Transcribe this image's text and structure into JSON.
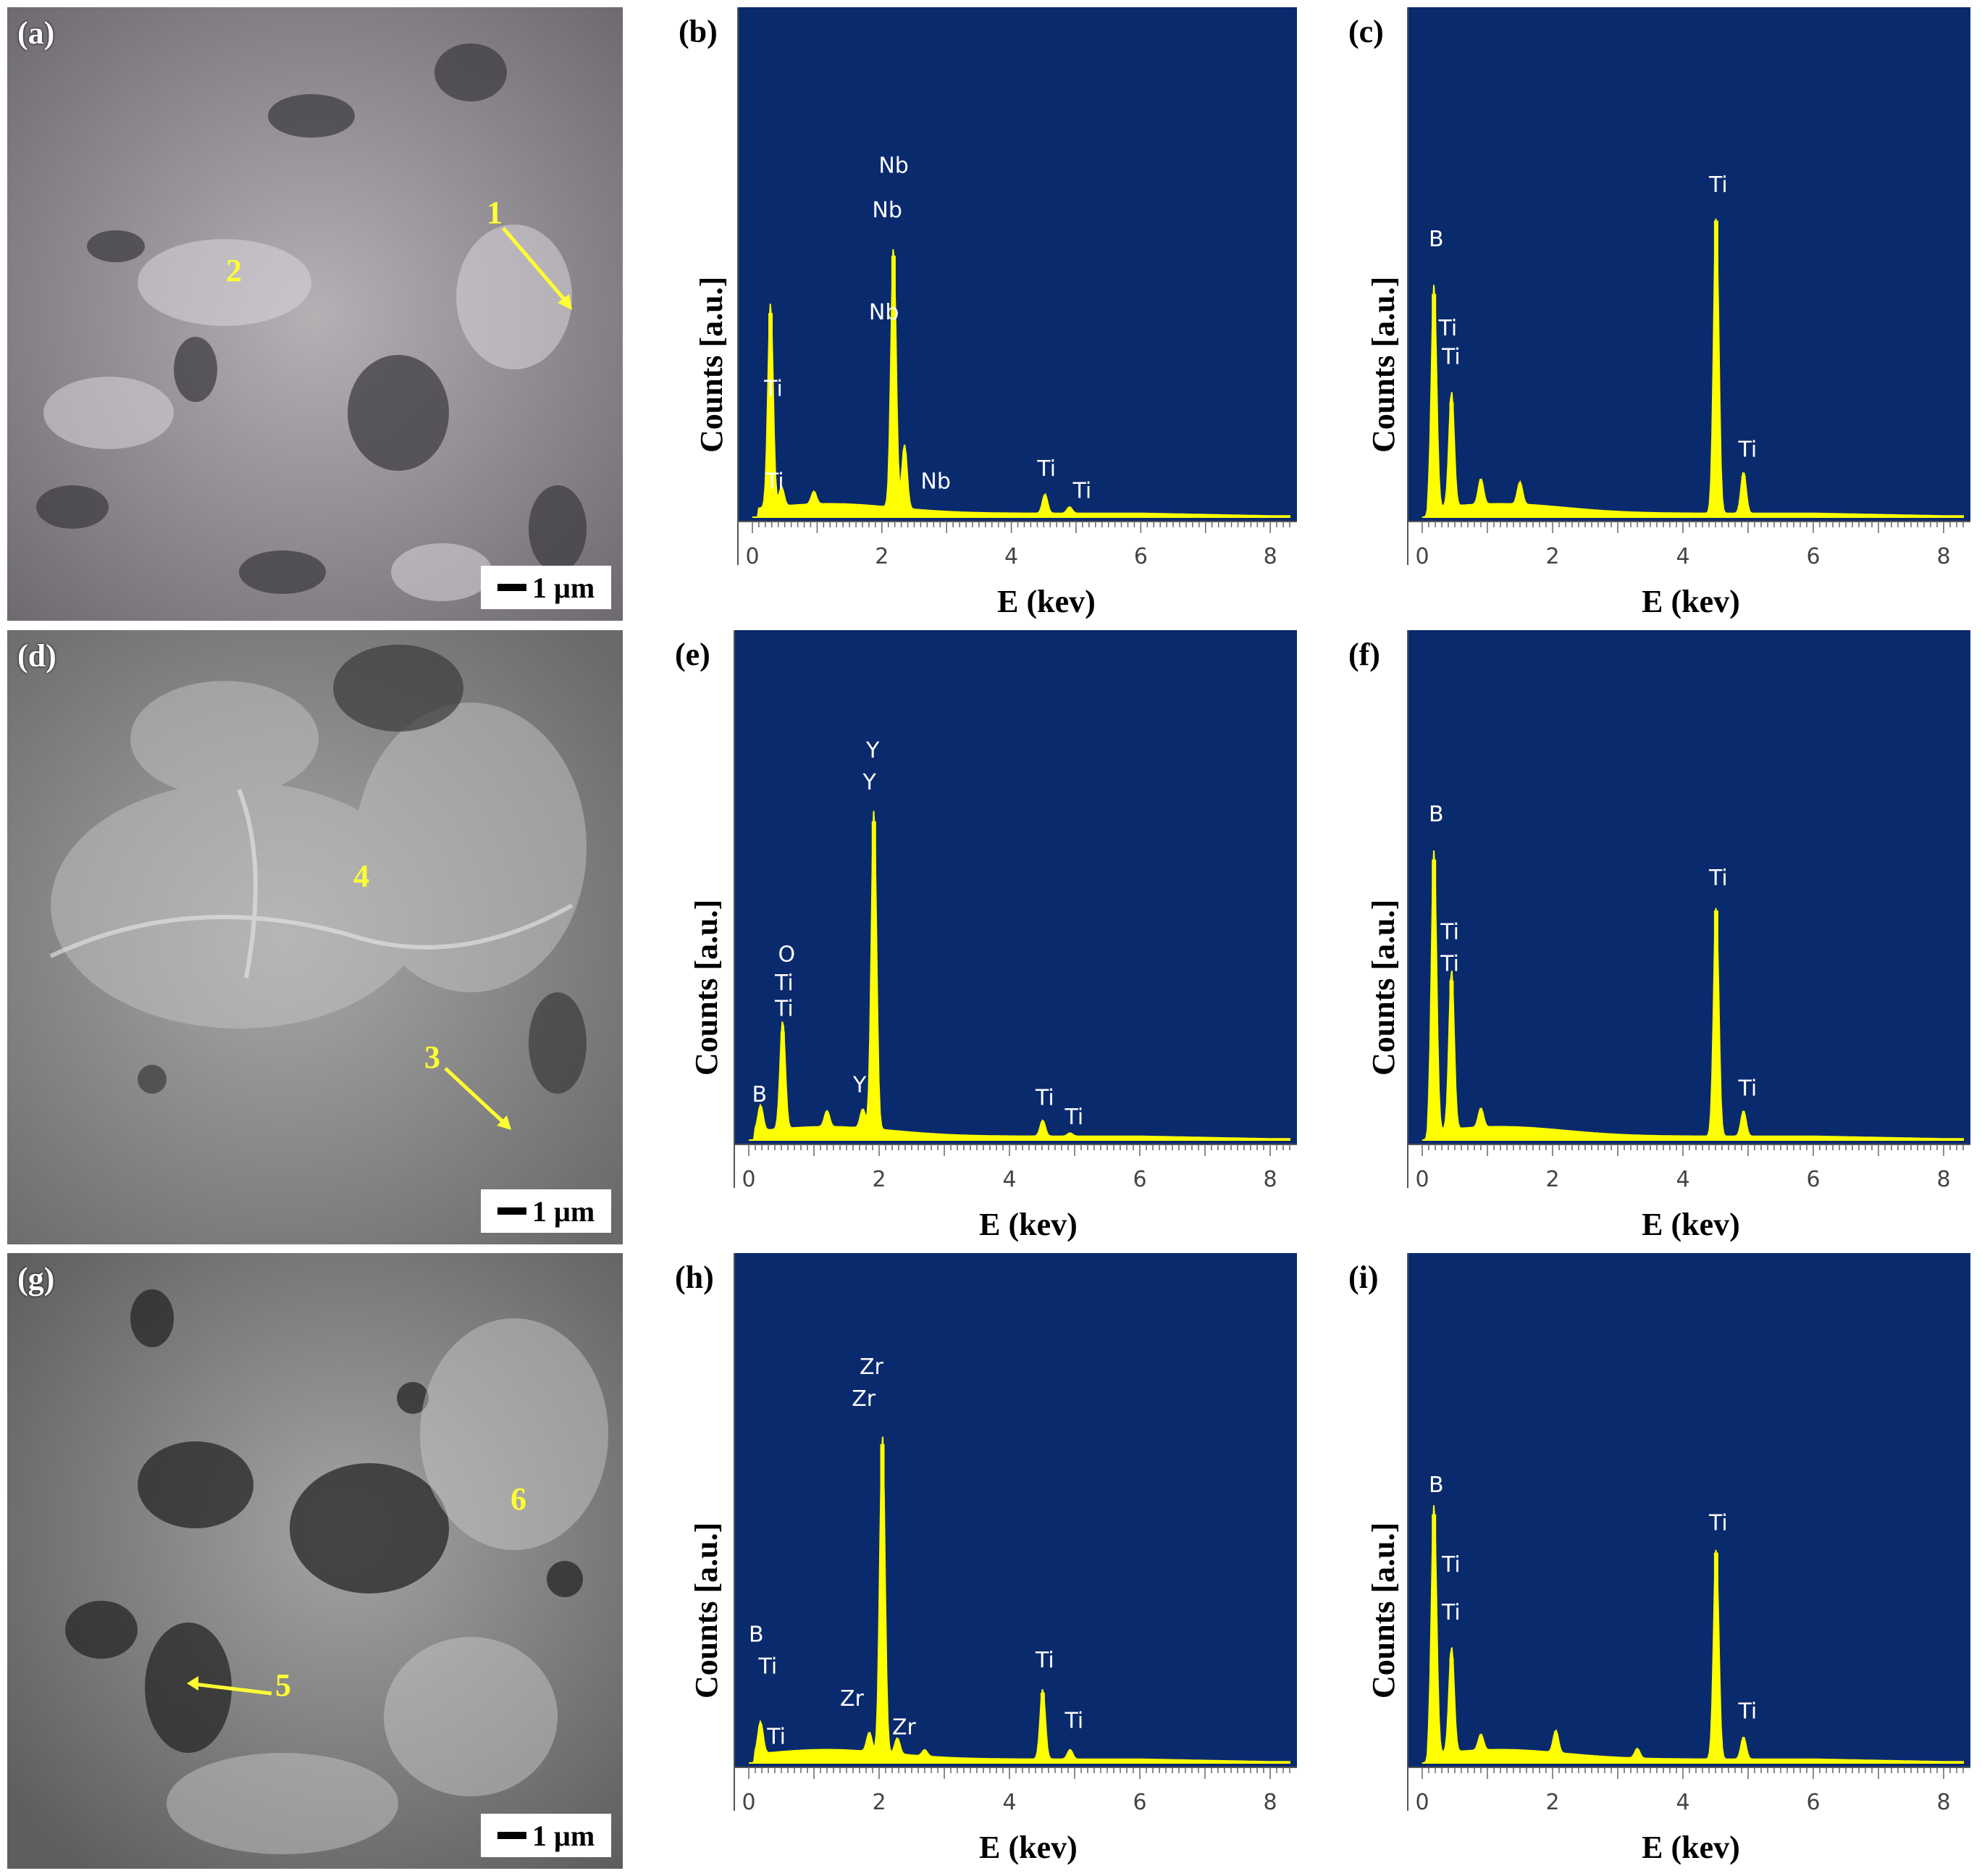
{
  "sem_panels": [
    {
      "id": "a",
      "letter": "(a)",
      "scale": "1 µm",
      "markers": [
        {
          "label": "1"
        },
        {
          "label": "2"
        }
      ],
      "tone": "#8e8a8e"
    },
    {
      "id": "d",
      "letter": "(d)",
      "scale": "1 µm",
      "markers": [
        {
          "label": "3"
        },
        {
          "label": "4"
        }
      ],
      "tone": "#8c8c8c"
    },
    {
      "id": "g",
      "letter": "(g)",
      "scale": "1 µm",
      "markers": [
        {
          "label": "5"
        },
        {
          "label": "6"
        }
      ],
      "tone": "#7f7f7f"
    }
  ],
  "colors": {
    "plot_bg": "#0a2a6e",
    "spectrum": "#ffff00",
    "peak_label": "#ffffff",
    "marker": "#ffff33"
  },
  "axis_text": {
    "ylabel": "Counts [a.u.]",
    "xlabel": "E (kev)"
  },
  "chart_data": [
    {
      "id": "b",
      "letter": "(b)",
      "type": "area",
      "xlim": [
        0,
        8.3
      ],
      "xticks": [
        0,
        2,
        4,
        6,
        8
      ],
      "peaks": [
        {
          "x": 0.28,
          "h": 0.64
        },
        {
          "x": 0.45,
          "h": 0.06
        },
        {
          "x": 0.95,
          "h": 0.04
        },
        {
          "x": 2.18,
          "h": 0.82
        },
        {
          "x": 2.35,
          "h": 0.2
        },
        {
          "x": 4.52,
          "h": 0.06
        },
        {
          "x": 4.9,
          "h": 0.02
        }
      ],
      "labels": [
        {
          "text": "Ti",
          "x": 0.18,
          "y": 0.38
        },
        {
          "text": "Ti",
          "x": 0.2,
          "y": 0.09
        },
        {
          "text": "Nb",
          "x": 1.95,
          "y": 1.08
        },
        {
          "text": "Nb",
          "x": 1.85,
          "y": 0.94
        },
        {
          "text": "Nb",
          "x": 1.8,
          "y": 0.62
        },
        {
          "text": "Nb",
          "x": 2.6,
          "y": 0.09
        },
        {
          "text": "Ti",
          "x": 4.4,
          "y": 0.13
        },
        {
          "text": "Ti",
          "x": 4.95,
          "y": 0.06
        }
      ]
    },
    {
      "id": "c",
      "letter": "(c)",
      "type": "area",
      "xlim": [
        0,
        8.3
      ],
      "xticks": [
        0,
        2,
        4,
        6,
        8
      ],
      "peaks": [
        {
          "x": 0.18,
          "h": 0.7
        },
        {
          "x": 0.45,
          "h": 0.36
        },
        {
          "x": 0.9,
          "h": 0.08
        },
        {
          "x": 1.5,
          "h": 0.07
        },
        {
          "x": 4.51,
          "h": 0.93
        },
        {
          "x": 4.93,
          "h": 0.13
        }
      ],
      "labels": [
        {
          "text": "B",
          "x": 0.1,
          "y": 0.85
        },
        {
          "text": "Ti",
          "x": 0.25,
          "y": 0.57
        },
        {
          "text": "Ti",
          "x": 0.3,
          "y": 0.48
        },
        {
          "text": "Ti",
          "x": 4.4,
          "y": 1.02
        },
        {
          "text": "Ti",
          "x": 4.85,
          "y": 0.19
        }
      ]
    },
    {
      "id": "e",
      "letter": "(e)",
      "type": "area",
      "xlim": [
        0,
        8.3
      ],
      "xticks": [
        0,
        2,
        4,
        6,
        8
      ],
      "peaks": [
        {
          "x": 0.18,
          "h": 0.08
        },
        {
          "x": 0.52,
          "h": 0.34
        },
        {
          "x": 1.2,
          "h": 0.05
        },
        {
          "x": 1.75,
          "h": 0.06
        },
        {
          "x": 1.92,
          "h": 1.0
        },
        {
          "x": 4.51,
          "h": 0.05
        },
        {
          "x": 4.93,
          "h": 0.01
        }
      ],
      "labels": [
        {
          "text": "Y",
          "x": 1.8,
          "y": 1.2
        },
        {
          "text": "Y",
          "x": 1.75,
          "y": 1.1
        },
        {
          "text": "O",
          "x": 0.45,
          "y": 0.56
        },
        {
          "text": "Ti",
          "x": 0.4,
          "y": 0.47
        },
        {
          "text": "Ti",
          "x": 0.4,
          "y": 0.39
        },
        {
          "text": "B",
          "x": 0.05,
          "y": 0.12
        },
        {
          "text": "Y",
          "x": 1.6,
          "y": 0.15
        },
        {
          "text": "Ti",
          "x": 4.4,
          "y": 0.11
        },
        {
          "text": "Ti",
          "x": 4.85,
          "y": 0.05
        }
      ]
    },
    {
      "id": "f",
      "letter": "(f)",
      "type": "area",
      "xlim": [
        0,
        8.3
      ],
      "xticks": [
        0,
        2,
        4,
        6,
        8
      ],
      "peaks": [
        {
          "x": 0.18,
          "h": 0.88
        },
        {
          "x": 0.45,
          "h": 0.5
        },
        {
          "x": 0.9,
          "h": 0.06
        },
        {
          "x": 4.51,
          "h": 0.72
        },
        {
          "x": 4.93,
          "h": 0.08
        }
      ],
      "labels": [
        {
          "text": "B",
          "x": 0.1,
          "y": 1.0
        },
        {
          "text": "Ti",
          "x": 0.28,
          "y": 0.63
        },
        {
          "text": "Ti",
          "x": 0.28,
          "y": 0.53
        },
        {
          "text": "Ti",
          "x": 4.4,
          "y": 0.8
        },
        {
          "text": "Ti",
          "x": 4.85,
          "y": 0.14
        }
      ]
    },
    {
      "id": "h",
      "letter": "(h)",
      "type": "area",
      "xlim": [
        0,
        8.3
      ],
      "xticks": [
        0,
        2,
        4,
        6,
        8
      ],
      "peaks": [
        {
          "x": 0.18,
          "h": 0.1
        },
        {
          "x": 1.85,
          "h": 0.06
        },
        {
          "x": 2.05,
          "h": 1.0
        },
        {
          "x": 2.28,
          "h": 0.05
        },
        {
          "x": 2.7,
          "h": 0.02
        },
        {
          "x": 4.51,
          "h": 0.22
        },
        {
          "x": 4.93,
          "h": 0.03
        }
      ],
      "labels": [
        {
          "text": "Zr",
          "x": 1.7,
          "y": 1.22
        },
        {
          "text": "Zr",
          "x": 1.58,
          "y": 1.12
        },
        {
          "text": "B",
          "x": 0.0,
          "y": 0.38
        },
        {
          "text": "Ti",
          "x": 0.15,
          "y": 0.28
        },
        {
          "text": "Ti",
          "x": 0.28,
          "y": 0.06
        },
        {
          "text": "Zr",
          "x": 1.4,
          "y": 0.18
        },
        {
          "text": "Zr",
          "x": 2.2,
          "y": 0.09
        },
        {
          "text": "Ti",
          "x": 4.4,
          "y": 0.3
        },
        {
          "text": "Ti",
          "x": 4.85,
          "y": 0.11
        }
      ]
    },
    {
      "id": "i",
      "letter": "(i)",
      "type": "area",
      "xlim": [
        0,
        8.3
      ],
      "xticks": [
        0,
        2,
        4,
        6,
        8
      ],
      "peaks": [
        {
          "x": 0.18,
          "h": 0.78
        },
        {
          "x": 0.45,
          "h": 0.33
        },
        {
          "x": 0.9,
          "h": 0.05
        },
        {
          "x": 2.05,
          "h": 0.07
        },
        {
          "x": 3.3,
          "h": 0.03
        },
        {
          "x": 4.51,
          "h": 0.66
        },
        {
          "x": 4.93,
          "h": 0.07
        }
      ],
      "labels": [
        {
          "text": "B",
          "x": 0.1,
          "y": 0.85
        },
        {
          "text": "Ti",
          "x": 0.3,
          "y": 0.6
        },
        {
          "text": "Ti",
          "x": 0.3,
          "y": 0.45
        },
        {
          "text": "Ti",
          "x": 4.4,
          "y": 0.73
        },
        {
          "text": "Ti",
          "x": 4.85,
          "y": 0.14
        }
      ]
    }
  ]
}
